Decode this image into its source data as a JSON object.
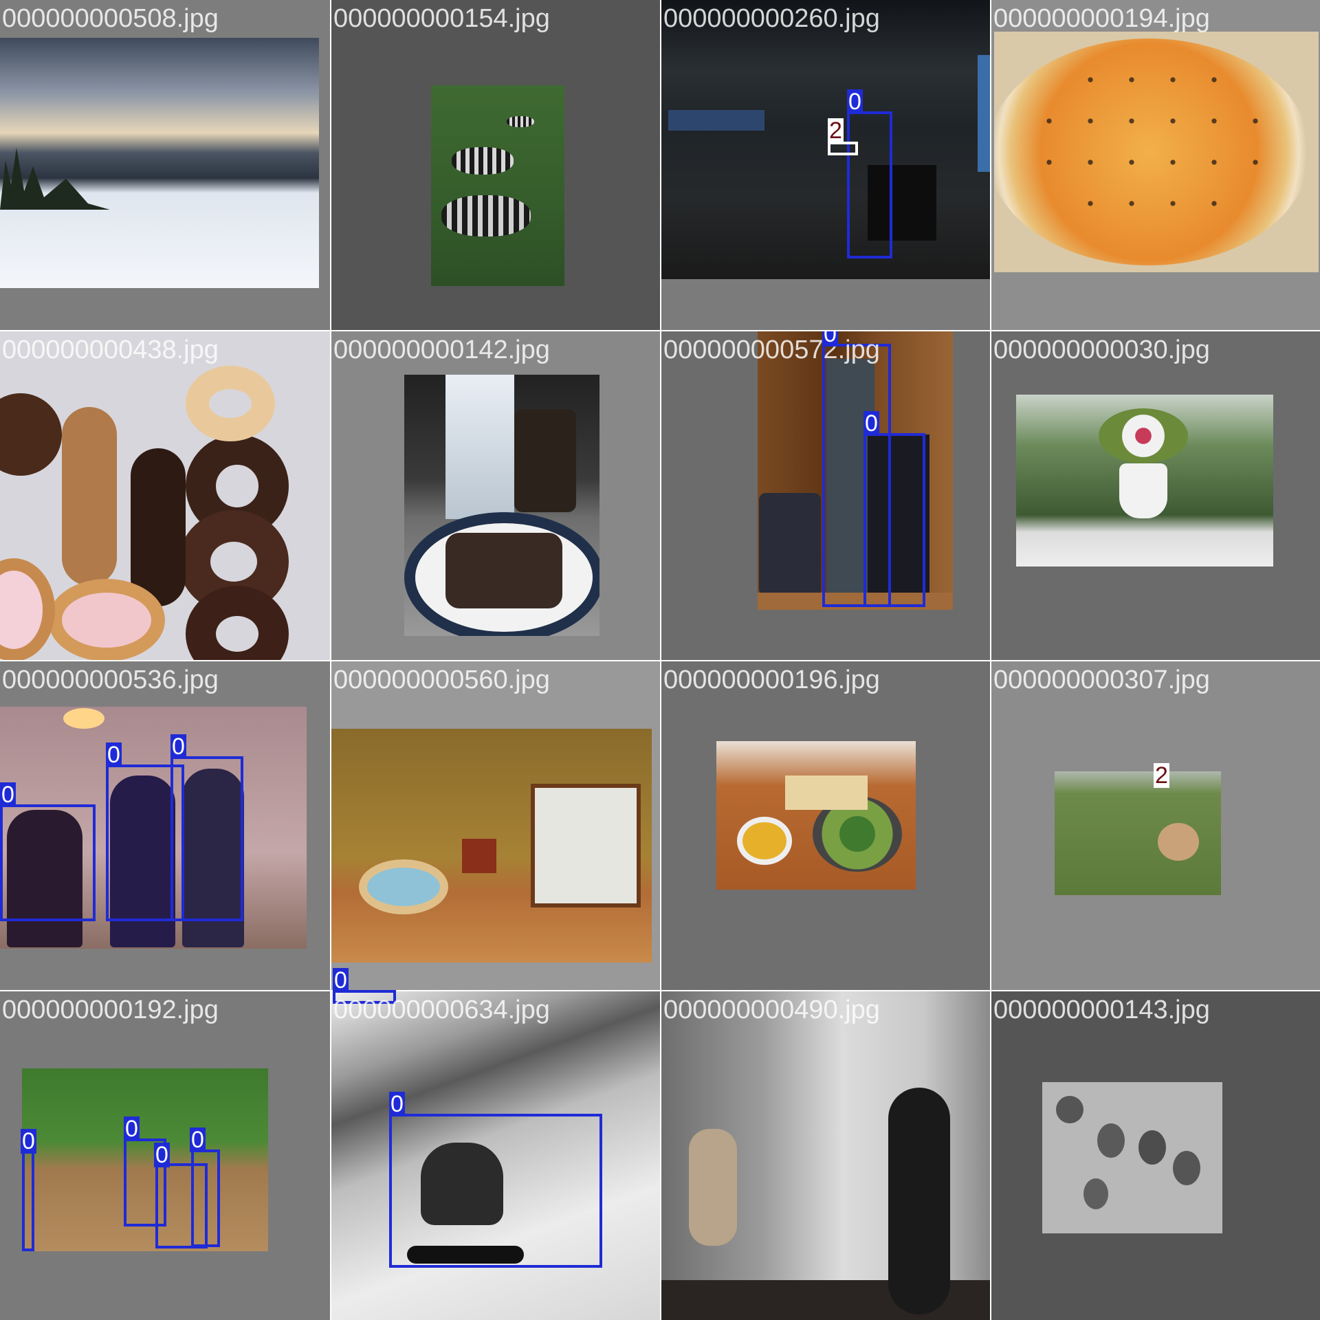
{
  "grid": {
    "cells": [
      {
        "filename": "000000000508.jpg",
        "background": "#7d7d7d"
      },
      {
        "filename": "000000000154.jpg",
        "background": "#555555"
      },
      {
        "filename": "000000000260.jpg",
        "background": "#7b7b7b"
      },
      {
        "filename": "000000000194.jpg",
        "background": "#8e8e8e"
      },
      {
        "filename": "000000000438.jpg",
        "background": "#6a6a6a"
      },
      {
        "filename": "000000000142.jpg",
        "background": "#888888"
      },
      {
        "filename": "000000000572.jpg",
        "background": "#6c6c6c"
      },
      {
        "filename": "000000000030.jpg",
        "background": "#6b6b6b"
      },
      {
        "filename": "000000000536.jpg",
        "background": "#7e7e7e"
      },
      {
        "filename": "000000000560.jpg",
        "background": "#999999"
      },
      {
        "filename": "000000000196.jpg",
        "background": "#6f6f6f"
      },
      {
        "filename": "000000000307.jpg",
        "background": "#8c8c8c"
      },
      {
        "filename": "000000000192.jpg",
        "background": "#7a7a7a"
      },
      {
        "filename": "000000000634.jpg",
        "background": "#6d6d6d"
      },
      {
        "filename": "000000000490.jpg",
        "background": "#5e5e5e"
      },
      {
        "filename": "000000000143.jpg",
        "background": "#555555"
      }
    ]
  },
  "detection_labels": {
    "person_class": "0",
    "other_class": "2"
  },
  "colors": {
    "box_primary": "#1f2bd6",
    "box_secondary": "#ffffff",
    "label_secondary_text": "#6b1010"
  },
  "icons": [
    "tile-photo"
  ]
}
